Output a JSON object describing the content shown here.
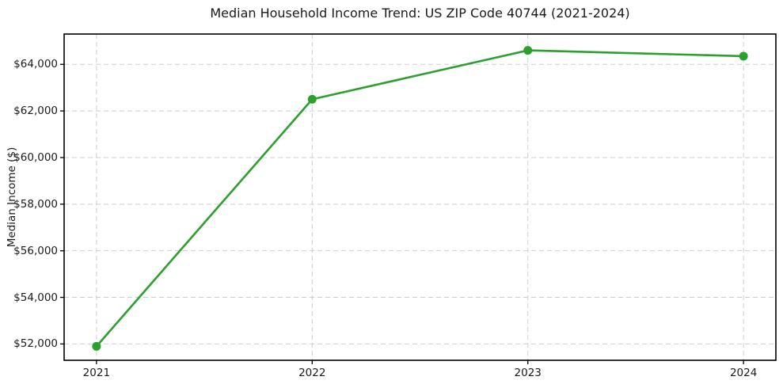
{
  "chart_data": {
    "type": "line",
    "title": "Median Household Income Trend: US ZIP Code 40744 (2021-2024)",
    "xlabel": "",
    "ylabel": "Median Income ($)",
    "x": [
      2021,
      2022,
      2023,
      2024
    ],
    "categories": [
      "2021",
      "2022",
      "2023",
      "2024"
    ],
    "series": [
      {
        "name": "Median Household Income",
        "values": [
          51900,
          62500,
          64600,
          64350
        ],
        "color": "#2ca02c",
        "marker": "circle"
      }
    ],
    "xticks": [
      2021,
      2022,
      2023,
      2024
    ],
    "xtick_labels": [
      "2021",
      "2022",
      "2023",
      "2024"
    ],
    "yticks": [
      52000,
      54000,
      56000,
      58000,
      60000,
      62000,
      64000
    ],
    "ytick_labels": [
      "$52,000",
      "$54,000",
      "$56,000",
      "$58,000",
      "$60,000",
      "$62,000",
      "$64,000"
    ],
    "xlim": [
      2020.85,
      2024.15
    ],
    "ylim": [
      51300,
      65300
    ],
    "grid": true,
    "grid_style": "dashed",
    "grid_color": "#cecece",
    "axis_color": "#000000",
    "text_color": "#1a1a1a",
    "background_color": "#ffffff",
    "legend": "none",
    "line_width": 2.6,
    "marker_radius": 5.5
  }
}
